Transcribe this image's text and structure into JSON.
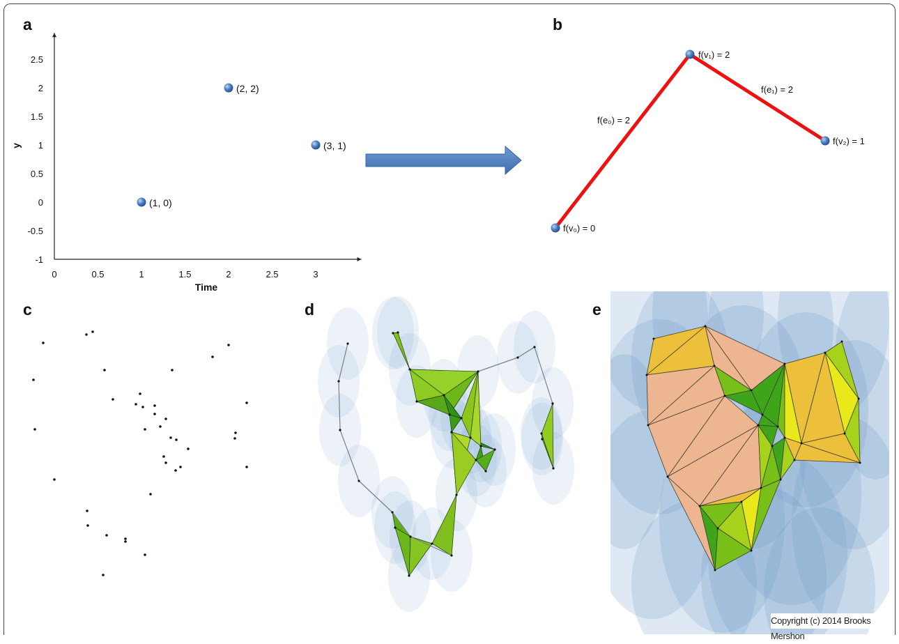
{
  "panels": {
    "a": {
      "label": "a"
    },
    "b": {
      "label": "b"
    },
    "c": {
      "label": "c"
    },
    "d": {
      "label": "d"
    },
    "e": {
      "label": "e"
    }
  },
  "chart_data": {
    "type": "scatter",
    "xlabel": "Time",
    "ylabel": "y",
    "xlim": [
      0,
      3.5
    ],
    "ylim": [
      -1,
      2.9
    ],
    "x_ticks": [
      "0",
      "0.5",
      "1",
      "1.5",
      "2",
      "2.5",
      "3"
    ],
    "y_ticks": [
      "2.5",
      "2",
      "1.5",
      "1",
      "0.5",
      "0",
      "-0.5",
      "-1"
    ],
    "points": [
      {
        "x": 1,
        "y": 0,
        "label": "(1, 0)"
      },
      {
        "x": 2,
        "y": 2,
        "label": "(2, 2)"
      },
      {
        "x": 3,
        "y": 1,
        "label": "(3, 1)"
      }
    ],
    "point_color": "#4f7fc4"
  },
  "graph_b": {
    "vertex_labels": [
      "f(v₀) = 0",
      "f(v₁) = 2",
      "f(v₂) = 1"
    ],
    "edge_labels": [
      "f(e₀) = 2",
      "f(e₁) = 2"
    ],
    "edge_color": "#ee1111"
  },
  "arrow_color": "#4f7fc4",
  "copyright": "Copyright (c) 2014 Brooks Mershon"
}
